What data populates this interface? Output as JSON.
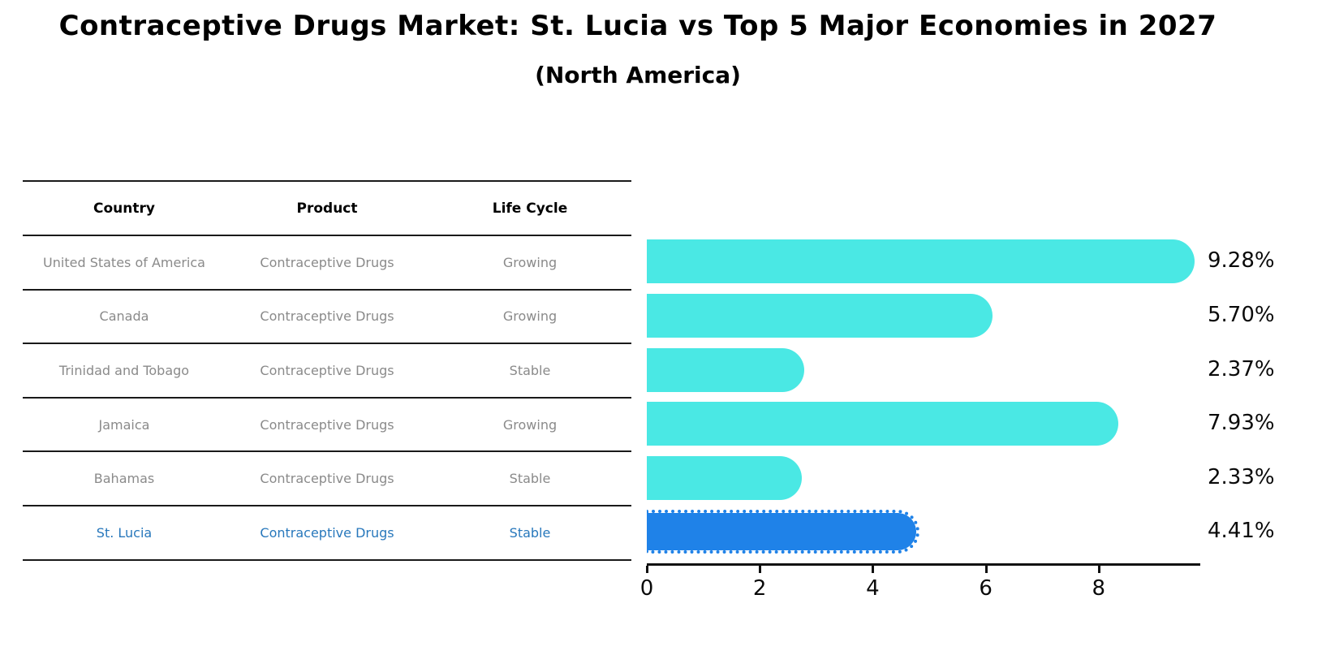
{
  "title": "Contraceptive Drugs Market: St. Lucia vs Top 5 Major Economies in 2027",
  "subtitle": "(North America)",
  "table": {
    "headers": [
      "Country",
      "Product",
      "Life Cycle"
    ],
    "rows": [
      {
        "country": "United States of America",
        "product": "Contraceptive Drugs",
        "life_cycle": "Growing",
        "highlight": false
      },
      {
        "country": "Canada",
        "product": "Contraceptive Drugs",
        "life_cycle": "Growing",
        "highlight": false
      },
      {
        "country": "Trinidad and Tobago",
        "product": "Contraceptive Drugs",
        "life_cycle": "Stable",
        "highlight": false
      },
      {
        "country": "Jamaica",
        "product": "Contraceptive Drugs",
        "life_cycle": "Growing",
        "highlight": false
      },
      {
        "country": "Bahamas",
        "product": "Contraceptive Drugs",
        "life_cycle": "Stable",
        "highlight": false
      },
      {
        "country": "St. Lucia",
        "product": "Contraceptive Drugs",
        "life_cycle": "Stable",
        "highlight": true
      }
    ]
  },
  "chart_data": {
    "type": "bar",
    "orientation": "horizontal",
    "title": "Contraceptive Drugs Market: St. Lucia vs Top 5 Major Economies in 2027 (North America)",
    "xlabel": "",
    "ylabel": "",
    "categories": [
      "United States of America",
      "Canada",
      "Trinidad and Tobago",
      "Jamaica",
      "Bahamas",
      "St. Lucia"
    ],
    "values": [
      9.28,
      5.7,
      2.37,
      7.93,
      2.33,
      4.41
    ],
    "labels": [
      "9.28%",
      "5.70%",
      "2.37%",
      "7.93%",
      "2.33%",
      "4.41%"
    ],
    "x_ticks": [
      "0",
      "2",
      "4",
      "6",
      "8"
    ],
    "x_tick_values": [
      0,
      2,
      4,
      6,
      8
    ],
    "xlim": [
      0,
      9.77
    ],
    "grid": false,
    "legend": "none",
    "bar_color": "#4AE8E4",
    "highlight_color": "#1F82E8",
    "highlight_index": 5,
    "highlight_style": "dotted-outline"
  },
  "colors": {
    "background": "#ffffff",
    "table_line": "#1a1a1a",
    "table_text": "#8a8a8a",
    "header_text": "#000000",
    "highlight_text": "#2878bc",
    "axis": "#111111",
    "value_label": "#0a0a0a"
  }
}
